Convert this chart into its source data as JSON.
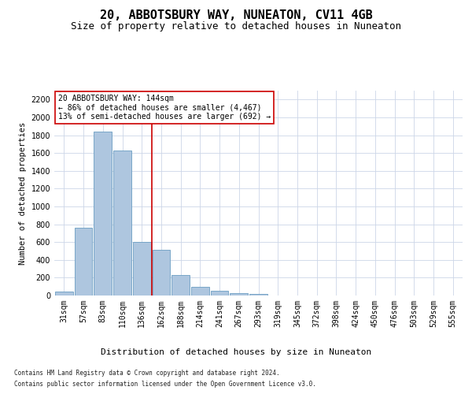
{
  "title": "20, ABBOTSBURY WAY, NUNEATON, CV11 4GB",
  "subtitle": "Size of property relative to detached houses in Nuneaton",
  "xlabel": "Distribution of detached houses by size in Nuneaton",
  "ylabel": "Number of detached properties",
  "categories": [
    "31sqm",
    "57sqm",
    "83sqm",
    "110sqm",
    "136sqm",
    "162sqm",
    "188sqm",
    "214sqm",
    "241sqm",
    "267sqm",
    "293sqm",
    "319sqm",
    "345sqm",
    "372sqm",
    "398sqm",
    "424sqm",
    "450sqm",
    "476sqm",
    "503sqm",
    "529sqm",
    "555sqm"
  ],
  "values": [
    45,
    760,
    1840,
    1630,
    600,
    515,
    230,
    100,
    50,
    30,
    18,
    0,
    0,
    0,
    0,
    0,
    0,
    0,
    0,
    0,
    0
  ],
  "bar_color": "#aec6df",
  "bar_edge_color": "#6b9dc2",
  "vline_color": "#cc0000",
  "annotation_text": "20 ABBOTSBURY WAY: 144sqm\n← 86% of detached houses are smaller (4,467)\n13% of semi-detached houses are larger (692) →",
  "annotation_box_color": "#ffffff",
  "annotation_box_edge": "#cc0000",
  "footnote1": "Contains HM Land Registry data © Crown copyright and database right 2024.",
  "footnote2": "Contains public sector information licensed under the Open Government Licence v3.0.",
  "ylim": [
    0,
    2300
  ],
  "yticks": [
    0,
    200,
    400,
    600,
    800,
    1000,
    1200,
    1400,
    1600,
    1800,
    2000,
    2200
  ],
  "background_color": "#ffffff",
  "grid_color": "#ccd6e8",
  "title_fontsize": 11,
  "subtitle_fontsize": 9,
  "axis_label_fontsize": 8,
  "tick_fontsize": 7,
  "ylabel_fontsize": 7.5,
  "footnote_fontsize": 5.5,
  "annotation_fontsize": 7
}
